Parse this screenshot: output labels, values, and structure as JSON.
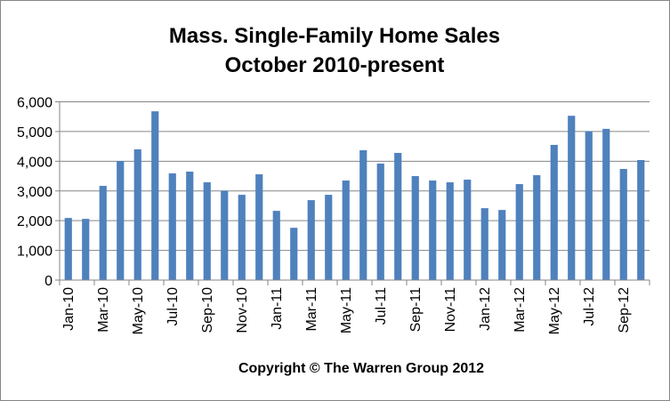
{
  "chart_data": {
    "type": "bar",
    "title": "Mass. Single-Family Home Sales",
    "subtitle": "October 2010-present",
    "footer": "Copyright © The Warren Group 2012",
    "xlabel": "",
    "ylabel": "",
    "ylim": [
      0,
      6000
    ],
    "yticks": [
      "0",
      "1,000",
      "2,000",
      "3,000",
      "4,000",
      "5,000",
      "6,000"
    ],
    "ytick_values": [
      0,
      1000,
      2000,
      3000,
      4000,
      5000,
      6000
    ],
    "grid": true,
    "legend": "none",
    "bar_color": "#4F81BD",
    "categories": [
      "Jan-10",
      "Feb-10",
      "Mar-10",
      "Apr-10",
      "May-10",
      "Jun-10",
      "Jul-10",
      "Aug-10",
      "Sep-10",
      "Oct-10",
      "Nov-10",
      "Dec-10",
      "Jan-11",
      "Feb-11",
      "Mar-11",
      "Apr-11",
      "May-11",
      "Jun-11",
      "Jul-11",
      "Aug-11",
      "Sep-11",
      "Oct-11",
      "Nov-11",
      "Dec-11",
      "Jan-12",
      "Feb-12",
      "Mar-12",
      "Apr-12",
      "May-12",
      "Jun-12",
      "Jul-12",
      "Aug-12",
      "Sep-12",
      "Oct-12"
    ],
    "shown_category_labels": [
      "Jan-10",
      "Mar-10",
      "May-10",
      "Jul-10",
      "Sep-10",
      "Nov-10",
      "Jan-11",
      "Mar-11",
      "May-11",
      "Jul-11",
      "Sep-11",
      "Nov-11",
      "Jan-12",
      "Mar-12",
      "May-12",
      "Jul-12",
      "Sep-12"
    ],
    "values": [
      2090,
      2060,
      3170,
      4010,
      4400,
      5680,
      3590,
      3650,
      3290,
      3010,
      2870,
      3560,
      2330,
      1760,
      2690,
      2870,
      3350,
      4370,
      3920,
      4280,
      3500,
      3350,
      3290,
      3380,
      2420,
      2360,
      3230,
      3530,
      4550,
      5530,
      5010,
      5090,
      3740,
      4040
    ]
  }
}
